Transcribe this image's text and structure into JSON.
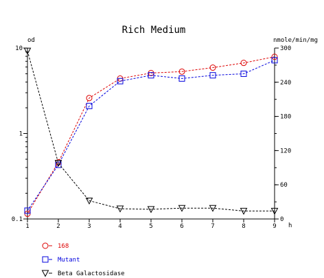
{
  "chart_data": {
    "type": "line",
    "title": "Rich Medium",
    "left_axis": {
      "label": "od",
      "scale": "log",
      "range": [
        0.1,
        10
      ],
      "ticks": [
        "10",
        "1",
        "0.1"
      ],
      "tick_values": [
        10,
        1,
        0.1
      ]
    },
    "right_axis": {
      "label": "nmole/min/mg",
      "scale": "linear",
      "range": [
        0,
        300
      ],
      "ticks": [
        "300",
        "240",
        "180",
        "120",
        "60",
        "0"
      ],
      "tick_values": [
        300,
        240,
        180,
        120,
        60,
        0
      ]
    },
    "x_axis": {
      "label": "h",
      "range": [
        1,
        9
      ],
      "ticks": [
        "1",
        "2",
        "3",
        "4",
        "5",
        "6",
        "7",
        "8",
        "9"
      ],
      "tick_values": [
        1,
        2,
        3,
        4,
        5,
        6,
        7,
        8,
        9
      ]
    },
    "x": [
      1,
      2,
      3,
      4,
      5,
      6,
      7,
      8,
      9
    ],
    "series": [
      {
        "name": "168",
        "axis": "left",
        "marker": "circle",
        "color": "#dd0000",
        "values": [
          0.115,
          0.46,
          2.6,
          4.4,
          5.1,
          5.3,
          5.9,
          6.7,
          7.9
        ]
      },
      {
        "name": "Mutant",
        "axis": "left",
        "marker": "square",
        "color": "#0000dd",
        "values": [
          0.125,
          0.43,
          2.1,
          4.1,
          4.8,
          4.4,
          4.8,
          5.0,
          7.2
        ]
      },
      {
        "name": "Beta Galactosidase",
        "axis": "right",
        "marker": "triangle-down",
        "color": "#000000",
        "values": [
          295,
          98,
          32,
          18,
          17,
          19,
          19,
          14,
          14
        ]
      }
    ],
    "legend": {
      "placement": "bottom-left"
    },
    "grid": false
  }
}
